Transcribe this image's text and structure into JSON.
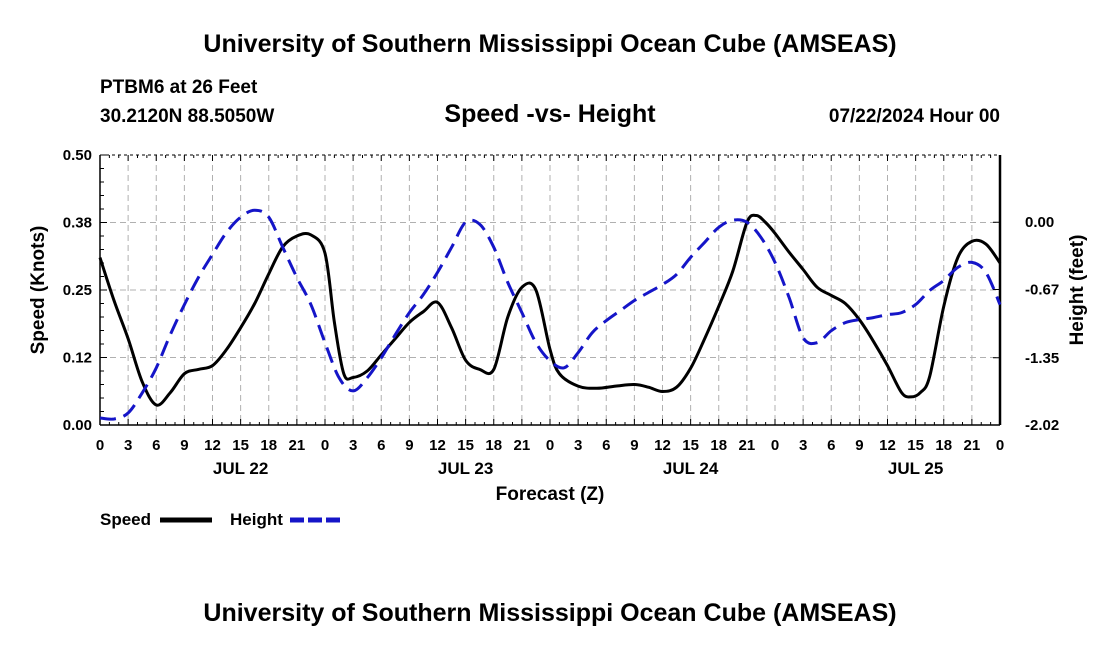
{
  "page": {
    "title_top": "University of Southern Mississippi Ocean Cube (AMSEAS)",
    "title_bottom": "University of Southern Mississippi Ocean Cube (AMSEAS)",
    "station": "PTBM6 at 26 Feet",
    "location": "30.2120N  88.5050W",
    "date": "07/22/2024 Hour 00"
  },
  "chart_data": {
    "type": "line",
    "title": "Speed -vs- Height",
    "xlabel": "Forecast (Z)",
    "ylabel": "Speed (Knots)",
    "y2label": "Height (feet)",
    "x_range_hours": [
      0,
      96
    ],
    "xticks": [
      {
        "hour": 0,
        "label": "0"
      },
      {
        "hour": 3,
        "label": "3"
      },
      {
        "hour": 6,
        "label": "6"
      },
      {
        "hour": 9,
        "label": "9"
      },
      {
        "hour": 12,
        "label": "12"
      },
      {
        "hour": 15,
        "label": "15"
      },
      {
        "hour": 18,
        "label": "18"
      },
      {
        "hour": 21,
        "label": "21"
      },
      {
        "hour": 24,
        "label": "0"
      },
      {
        "hour": 27,
        "label": "3"
      },
      {
        "hour": 30,
        "label": "6"
      },
      {
        "hour": 33,
        "label": "9"
      },
      {
        "hour": 36,
        "label": "12"
      },
      {
        "hour": 39,
        "label": "15"
      },
      {
        "hour": 42,
        "label": "18"
      },
      {
        "hour": 45,
        "label": "21"
      },
      {
        "hour": 48,
        "label": "0"
      },
      {
        "hour": 51,
        "label": "3"
      },
      {
        "hour": 54,
        "label": "6"
      },
      {
        "hour": 57,
        "label": "9"
      },
      {
        "hour": 60,
        "label": "12"
      },
      {
        "hour": 63,
        "label": "15"
      },
      {
        "hour": 66,
        "label": "18"
      },
      {
        "hour": 69,
        "label": "21"
      },
      {
        "hour": 72,
        "label": "0"
      },
      {
        "hour": 75,
        "label": "3"
      },
      {
        "hour": 78,
        "label": "6"
      },
      {
        "hour": 81,
        "label": "9"
      },
      {
        "hour": 84,
        "label": "12"
      },
      {
        "hour": 87,
        "label": "15"
      },
      {
        "hour": 90,
        "label": "18"
      },
      {
        "hour": 93,
        "label": "21"
      },
      {
        "hour": 96,
        "label": "0"
      }
    ],
    "day_labels": [
      {
        "hour": 15,
        "label": "JUL 22"
      },
      {
        "hour": 39,
        "label": "JUL 23"
      },
      {
        "hour": 63,
        "label": "JUL 24"
      },
      {
        "hour": 87,
        "label": "JUL 25"
      }
    ],
    "y_left": {
      "range": [
        0,
        0.5
      ],
      "ticks": [
        0,
        0.125,
        0.25,
        0.375,
        0.5
      ],
      "labels": [
        "0.00",
        "0.12",
        "0.25",
        "0.38",
        "0.50"
      ]
    },
    "y_right": {
      "range": [
        -2.02,
        0.67
      ],
      "ticks": [
        -2.02,
        -1.35,
        -0.67,
        0.0
      ],
      "labels": [
        "-2.02",
        "-1.35",
        "-0.67",
        "0.00"
      ]
    },
    "legend": [
      "Speed",
      "Height"
    ],
    "series": [
      {
        "name": "Speed",
        "axis": "left",
        "color": "#000000",
        "dash": false,
        "points": [
          [
            0,
            0.31
          ],
          [
            1.5,
            0.23
          ],
          [
            3,
            0.16
          ],
          [
            4.5,
            0.08
          ],
          [
            6,
            0.037
          ],
          [
            7.5,
            0.06
          ],
          [
            9,
            0.095
          ],
          [
            10.5,
            0.103
          ],
          [
            12,
            0.11
          ],
          [
            13.5,
            0.14
          ],
          [
            15,
            0.18
          ],
          [
            16.5,
            0.225
          ],
          [
            18,
            0.28
          ],
          [
            19.5,
            0.33
          ],
          [
            21,
            0.35
          ],
          [
            22.5,
            0.352
          ],
          [
            24,
            0.318
          ],
          [
            25,
            0.19
          ],
          [
            26,
            0.095
          ],
          [
            27,
            0.088
          ],
          [
            28.5,
            0.1
          ],
          [
            30,
            0.13
          ],
          [
            31.5,
            0.16
          ],
          [
            33,
            0.19
          ],
          [
            34.5,
            0.21
          ],
          [
            36,
            0.227
          ],
          [
            37.5,
            0.18
          ],
          [
            39,
            0.12
          ],
          [
            40.5,
            0.103
          ],
          [
            42,
            0.103
          ],
          [
            43.5,
            0.2
          ],
          [
            45,
            0.255
          ],
          [
            46.5,
            0.25
          ],
          [
            48,
            0.14
          ],
          [
            49,
            0.095
          ],
          [
            51,
            0.072
          ],
          [
            53,
            0.068
          ],
          [
            55,
            0.072
          ],
          [
            57,
            0.075
          ],
          [
            58.5,
            0.07
          ],
          [
            60,
            0.062
          ],
          [
            61.5,
            0.07
          ],
          [
            63,
            0.105
          ],
          [
            64.5,
            0.16
          ],
          [
            66,
            0.22
          ],
          [
            67.5,
            0.285
          ],
          [
            69,
            0.375
          ],
          [
            70,
            0.388
          ],
          [
            71,
            0.375
          ],
          [
            72,
            0.355
          ],
          [
            73.5,
            0.32
          ],
          [
            75,
            0.288
          ],
          [
            76.5,
            0.255
          ],
          [
            78,
            0.24
          ],
          [
            79.5,
            0.225
          ],
          [
            81,
            0.195
          ],
          [
            82.5,
            0.155
          ],
          [
            84,
            0.11
          ],
          [
            85.5,
            0.06
          ],
          [
            86.5,
            0.052
          ],
          [
            87.5,
            0.06
          ],
          [
            88.5,
            0.09
          ],
          [
            90,
            0.22
          ],
          [
            91.5,
            0.31
          ],
          [
            93,
            0.34
          ],
          [
            94.5,
            0.335
          ],
          [
            96,
            0.3
          ]
        ]
      },
      {
        "name": "Height",
        "axis": "right",
        "color": "#1515c8",
        "dash": true,
        "points": [
          [
            0,
            -1.95
          ],
          [
            1.5,
            -1.96
          ],
          [
            3,
            -1.9
          ],
          [
            4.5,
            -1.7
          ],
          [
            6,
            -1.45
          ],
          [
            7.5,
            -1.12
          ],
          [
            9,
            -0.82
          ],
          [
            10.5,
            -0.55
          ],
          [
            12,
            -0.32
          ],
          [
            13.5,
            -0.1
          ],
          [
            15,
            0.05
          ],
          [
            16.5,
            0.12
          ],
          [
            18,
            0.05
          ],
          [
            19.5,
            -0.25
          ],
          [
            21,
            -0.55
          ],
          [
            22.5,
            -0.82
          ],
          [
            24,
            -1.2
          ],
          [
            25.5,
            -1.55
          ],
          [
            27,
            -1.68
          ],
          [
            28.5,
            -1.55
          ],
          [
            30,
            -1.35
          ],
          [
            31.5,
            -1.12
          ],
          [
            33,
            -0.9
          ],
          [
            34.5,
            -0.72
          ],
          [
            36,
            -0.5
          ],
          [
            37.5,
            -0.25
          ],
          [
            39,
            0.0
          ],
          [
            40.5,
            -0.02
          ],
          [
            42,
            -0.25
          ],
          [
            43.5,
            -0.6
          ],
          [
            45,
            -0.9
          ],
          [
            46.5,
            -1.2
          ],
          [
            48,
            -1.38
          ],
          [
            49.5,
            -1.45
          ],
          [
            51,
            -1.3
          ],
          [
            52.5,
            -1.1
          ],
          [
            54,
            -0.98
          ],
          [
            55.5,
            -0.88
          ],
          [
            57,
            -0.78
          ],
          [
            58.5,
            -0.7
          ],
          [
            60,
            -0.62
          ],
          [
            61.5,
            -0.52
          ],
          [
            63,
            -0.35
          ],
          [
            64.5,
            -0.2
          ],
          [
            66,
            -0.05
          ],
          [
            67.5,
            0.02
          ],
          [
            69,
            0.0
          ],
          [
            70.5,
            -0.15
          ],
          [
            72,
            -0.4
          ],
          [
            73.5,
            -0.75
          ],
          [
            75,
            -1.15
          ],
          [
            76.5,
            -1.2
          ],
          [
            78,
            -1.08
          ],
          [
            79.5,
            -1.0
          ],
          [
            81,
            -0.97
          ],
          [
            82.5,
            -0.95
          ],
          [
            84,
            -0.92
          ],
          [
            85.5,
            -0.9
          ],
          [
            87,
            -0.82
          ],
          [
            88.5,
            -0.68
          ],
          [
            90,
            -0.58
          ],
          [
            91.5,
            -0.45
          ],
          [
            93,
            -0.4
          ],
          [
            94.5,
            -0.5
          ],
          [
            96,
            -0.82
          ]
        ]
      }
    ]
  }
}
